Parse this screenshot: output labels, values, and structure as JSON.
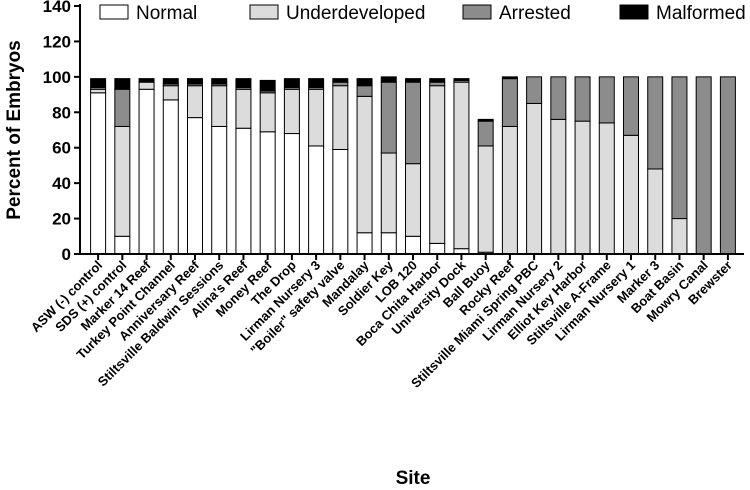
{
  "colors": {
    "normal": "#ffffff",
    "underdeveloped": "#dcdcdc",
    "arrested": "#8c8c8c",
    "malformed": "#000000",
    "stroke": "#000000"
  },
  "chart_data": {
    "type": "bar",
    "stacked": true,
    "xlabel": "Site",
    "ylabel": "Percent of Embryos",
    "ylim": [
      0,
      140
    ],
    "yticks": [
      0,
      20,
      40,
      60,
      80,
      100,
      120,
      140
    ],
    "legend_position": "top",
    "categories": [
      "ASW (-) control",
      "SDS (+) control",
      "Marker 14 Reef",
      "Turkey Point Channel",
      "Anniversary Reef",
      "Stiltsville Baldwin Sessions",
      "Alina's Reef",
      "Money Reef",
      "The Drop",
      "Lirman Nursery 3",
      "\"Boiler\" safety valve",
      "Mandalay",
      "Soldier Key",
      "LOB 120",
      "Boca Chita Harbor",
      "University Dock",
      "Ball Buoy",
      "Rocky Reef",
      "Stiltsville Miami Spring PBC",
      "Lirman Nursery 2",
      "Elliot Key Harbor",
      "Stiltsville A-Frame",
      "Lirman Nursery 1",
      "Marker 3",
      "Boat Basin",
      "Mowry Canal",
      "Brewster"
    ],
    "series": [
      {
        "name": "Normal",
        "values": [
          91,
          10,
          93,
          87,
          77,
          72,
          71,
          69,
          68,
          61,
          59,
          12,
          12,
          10,
          6,
          3,
          1,
          0,
          0,
          0,
          0,
          0,
          0,
          0,
          0,
          0,
          0
        ]
      },
      {
        "name": "Underdeveloped",
        "values": [
          2,
          62,
          4,
          8,
          18,
          23,
          22,
          22,
          25,
          32,
          36,
          77,
          45,
          41,
          89,
          94,
          60,
          72,
          85,
          76,
          75,
          74,
          67,
          48,
          20,
          0,
          0
        ]
      },
      {
        "name": "Arrested",
        "values": [
          1,
          21,
          0,
          1,
          1,
          1,
          1,
          1,
          1,
          1,
          2,
          6,
          40,
          46,
          2,
          1,
          14,
          27,
          15,
          24,
          25,
          26,
          33,
          52,
          80,
          100,
          100
        ]
      },
      {
        "name": "Malformed",
        "values": [
          5,
          6,
          2,
          3,
          3,
          3,
          5,
          6,
          5,
          5,
          2,
          4,
          3,
          2,
          2,
          1,
          1,
          1,
          0,
          0,
          0,
          0,
          0,
          0,
          0,
          0,
          0
        ]
      }
    ]
  }
}
